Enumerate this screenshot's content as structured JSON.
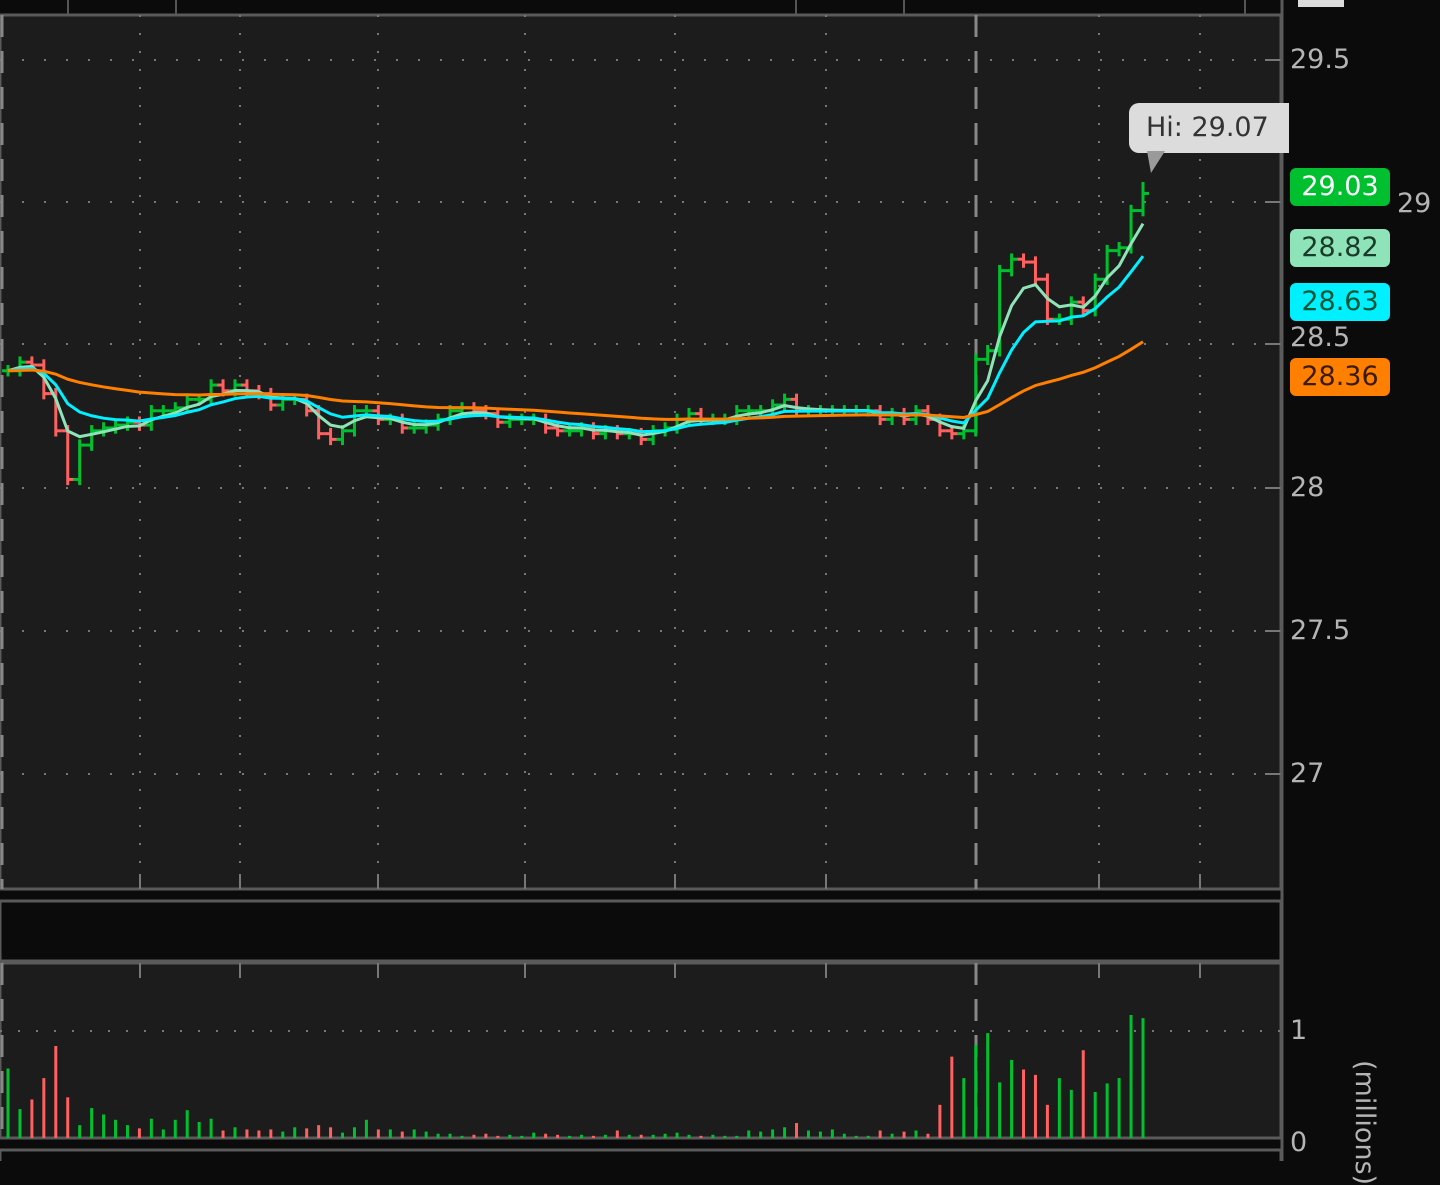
{
  "chart_data": {
    "type": "ohlc-bar",
    "symbol": "",
    "price_axis": {
      "ticks": [
        "29.5",
        "29",
        "28.5",
        "28",
        "27.5",
        "27"
      ],
      "range": [
        26.6,
        29.65
      ]
    },
    "volume_axis": {
      "ticks": [
        "1",
        "0"
      ],
      "unit_label": "(millions)",
      "range": [
        0,
        1.25
      ]
    },
    "close": [
      28.41,
      28.44,
      28.43,
      28.33,
      28.2,
      28.03,
      28.15,
      28.2,
      28.21,
      28.22,
      28.23,
      28.22,
      28.27,
      28.27,
      28.28,
      28.31,
      28.31,
      28.36,
      28.34,
      28.36,
      28.34,
      28.33,
      28.29,
      28.31,
      28.31,
      28.27,
      28.19,
      28.17,
      28.2,
      28.27,
      28.27,
      28.24,
      28.24,
      28.21,
      28.21,
      28.22,
      28.24,
      28.27,
      28.28,
      28.27,
      28.26,
      28.23,
      28.24,
      28.24,
      28.24,
      28.21,
      28.2,
      28.2,
      28.21,
      28.19,
      28.2,
      28.19,
      28.19,
      28.17,
      28.2,
      28.21,
      28.24,
      28.26,
      28.24,
      28.24,
      28.24,
      28.27,
      28.27,
      28.27,
      28.29,
      28.31,
      28.27,
      28.27,
      28.27,
      28.27,
      28.27,
      28.27,
      28.27,
      28.24,
      28.26,
      28.24,
      28.27,
      28.24,
      28.2,
      28.19,
      28.2,
      28.45,
      28.48,
      28.76,
      28.8,
      28.79,
      28.73,
      28.59,
      28.59,
      28.65,
      28.62,
      28.73,
      28.83,
      28.84,
      28.97,
      29.03
    ],
    "volume": [
      0.65,
      0.27,
      0.36,
      0.56,
      0.86,
      0.38,
      0.12,
      0.28,
      0.22,
      0.17,
      0.12,
      0.09,
      0.18,
      0.08,
      0.17,
      0.26,
      0.15,
      0.18,
      0.07,
      0.1,
      0.08,
      0.07,
      0.08,
      0.06,
      0.1,
      0.09,
      0.12,
      0.1,
      0.05,
      0.1,
      0.17,
      0.08,
      0.08,
      0.06,
      0.08,
      0.06,
      0.04,
      0.04,
      0.02,
      0.03,
      0.04,
      0.02,
      0.03,
      0.02,
      0.05,
      0.04,
      0.03,
      0.02,
      0.03,
      0.02,
      0.03,
      0.07,
      0.03,
      0.03,
      0.03,
      0.04,
      0.05,
      0.03,
      0.02,
      0.03,
      0.02,
      0.02,
      0.07,
      0.06,
      0.08,
      0.1,
      0.14,
      0.07,
      0.06,
      0.08,
      0.04,
      0.02,
      0.02,
      0.07,
      0.04,
      0.06,
      0.07,
      0.04,
      0.31,
      0.76,
      0.56,
      0.87,
      0.98,
      0.52,
      0.73,
      0.64,
      0.59,
      0.31,
      0.56,
      0.45,
      0.82,
      0.43,
      0.51,
      0.56,
      1.15,
      1.12
    ],
    "high_annotation": "Hi: 29.07",
    "last_price": "29.03",
    "studies": [
      {
        "value": "28.82",
        "color": "#8fe3b8"
      },
      {
        "value": "28.63",
        "color": "#00f0ff"
      },
      {
        "value": "28.36",
        "color": "#ff7f00"
      }
    ],
    "colors": {
      "up": "#00c030",
      "down": "#ff6060",
      "background": "#1c1c1c",
      "grid": "#666666"
    },
    "grid": true
  }
}
